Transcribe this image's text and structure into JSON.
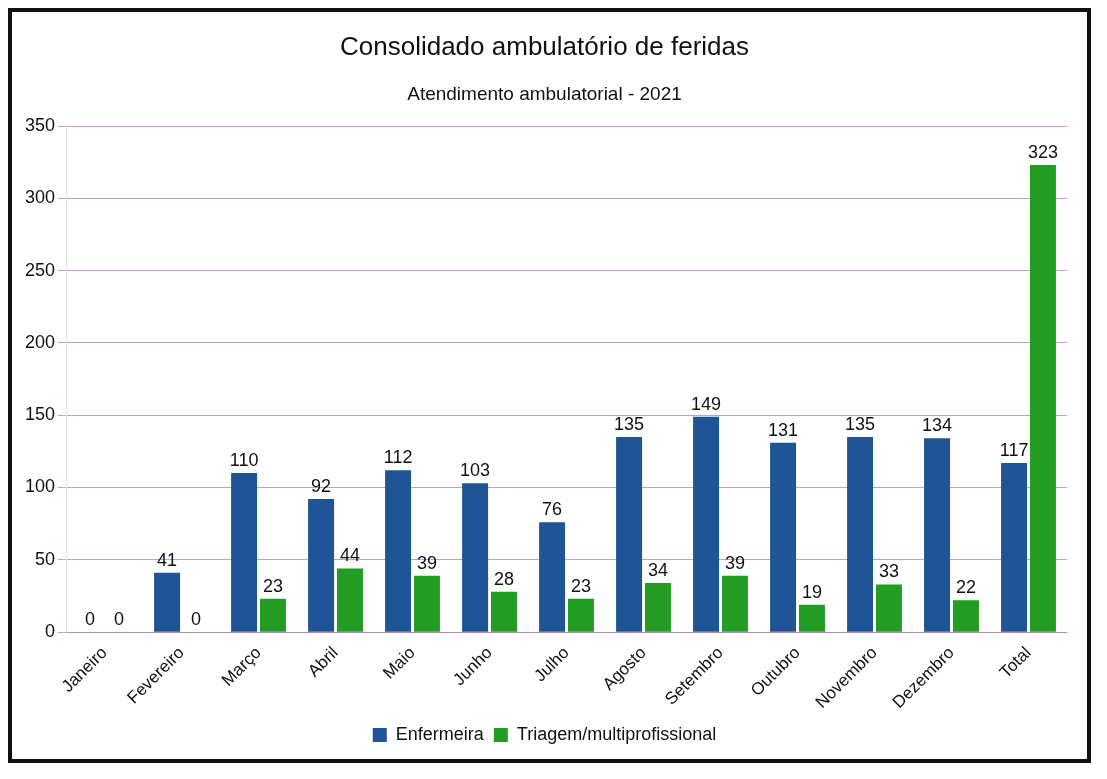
{
  "chart_data": {
    "type": "bar",
    "title": "Consolidado ambulatório de feridas",
    "subtitle": "Atendimento ambulatorial - 2021",
    "categories": [
      "Janeiro",
      "Fevereiro",
      "Março",
      "Abril",
      "Maio",
      "Junho",
      "Julho",
      "Agosto",
      "Setembro",
      "Outubro",
      "Novembro",
      "Dezembro",
      "Total"
    ],
    "series": [
      {
        "name": "Enfermeira",
        "color": "#1f5596",
        "values": [
          0,
          41,
          110,
          92,
          112,
          103,
          76,
          135,
          149,
          131,
          135,
          134,
          117
        ]
      },
      {
        "name": "Triagem/multiprofissional",
        "color": "#239c23",
        "values": [
          0,
          0,
          23,
          44,
          39,
          28,
          23,
          34,
          39,
          19,
          33,
          22,
          323
        ]
      }
    ],
    "ylim": [
      0,
      350
    ],
    "yticks": [
      0,
      50,
      100,
      150,
      200,
      250,
      300,
      350
    ],
    "grid": "y",
    "legend": "bottom",
    "data_labels": true
  }
}
